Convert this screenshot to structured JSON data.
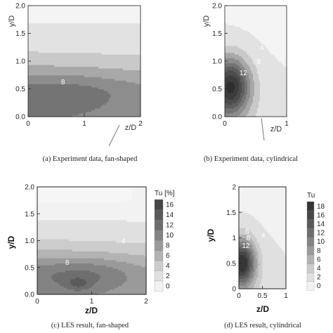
{
  "chart_data": [
    {
      "type": "heatmap",
      "caption": "(a) Experiment data, fan-shaped",
      "xlabel": "z/D",
      "ylabel": "y/D",
      "xlim": [
        0,
        2
      ],
      "ylim": [
        0,
        2
      ],
      "xticks": [
        "0",
        "1",
        "2"
      ],
      "yticks": [
        "0.0",
        "0.5",
        "1.0",
        "1.5",
        "2.0"
      ],
      "contour_labels": [
        {
          "text": "8",
          "z": 0.62,
          "y": 0.58
        }
      ]
    },
    {
      "type": "heatmap",
      "caption": "(b) Experiment data, cylindrical",
      "xlabel": "z/D",
      "ylabel": "y/D",
      "xlim": [
        0,
        1
      ],
      "ylim": [
        0,
        2
      ],
      "xticks": [
        "0",
        "1"
      ],
      "yticks": [
        "0.0",
        "0.5",
        "1.0",
        "1.5",
        "2.0"
      ],
      "contour_labels": [
        {
          "text": "4",
          "z": 0.6,
          "y": 1.2
        },
        {
          "text": "8",
          "z": 0.55,
          "y": 0.95
        },
        {
          "text": "12",
          "z": 0.3,
          "y": 0.75
        }
      ]
    },
    {
      "type": "heatmap",
      "caption": "(c) LES result, fan-shaped",
      "xlabel": "z/D",
      "ylabel": "y/D",
      "xlim": [
        0,
        2
      ],
      "ylim": [
        0,
        2
      ],
      "xticks": [
        "0",
        "1",
        "2"
      ],
      "yticks": [
        "0.0",
        "0.5",
        "1.0",
        "1.5",
        "2.0"
      ],
      "colorbar_title": "Tu [%]",
      "colorbar_levels": [
        0,
        2,
        4,
        6,
        8,
        10,
        12,
        14,
        16
      ],
      "contour_labels": [
        {
          "text": "4",
          "z": 1.58,
          "y": 0.95
        },
        {
          "text": "8",
          "z": 0.55,
          "y": 0.55
        }
      ]
    },
    {
      "type": "heatmap",
      "caption": "(d) LES result, cylindrical",
      "xlabel": "z/D",
      "ylabel": "y/D",
      "xlim": [
        0,
        1
      ],
      "ylim": [
        0,
        2
      ],
      "xticks": [
        "0",
        "0.5",
        "1"
      ],
      "yticks": [
        "0",
        "0.5",
        "1",
        "1.5",
        "2"
      ],
      "colorbar_title": "Tu",
      "colorbar_levels": [
        0,
        2,
        4,
        6,
        8,
        10,
        12,
        14,
        16,
        18
      ],
      "contour_labels": [
        {
          "text": "4",
          "z": 0.52,
          "y": 1.0
        },
        {
          "text": "6",
          "z": 0.18,
          "y": 1.08
        },
        {
          "text": "8",
          "z": 0.2,
          "y": 0.95
        },
        {
          "text": "12",
          "z": 0.15,
          "y": 0.8
        }
      ]
    }
  ]
}
